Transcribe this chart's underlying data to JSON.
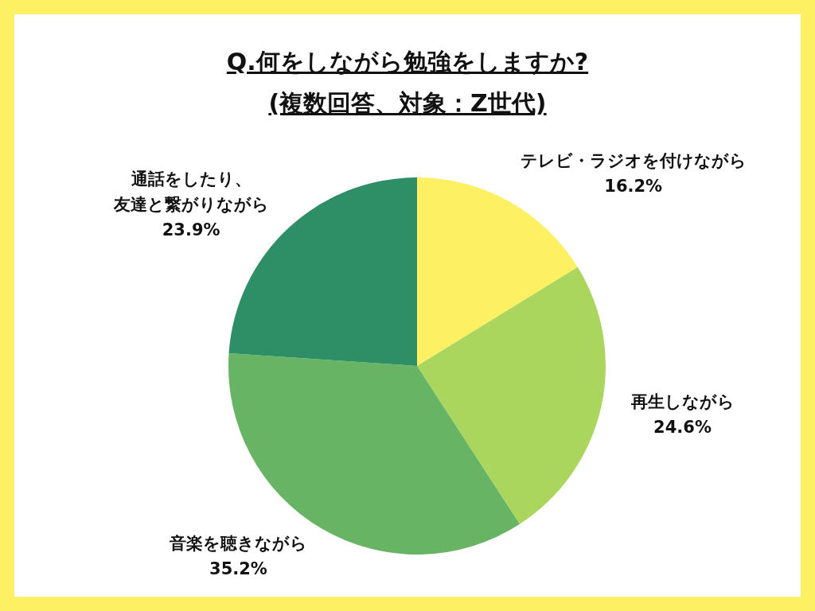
{
  "chart_data": {
    "type": "pie",
    "title": "Q.何をしながら勉強をしますか?",
    "subtitle": "(複数回答、対象：Z世代)",
    "categories": [
      "テレビ・ラジオを付けながら",
      "再生しながら",
      "音楽を聴きながら",
      "通話をしたり、友達と繋がりながら"
    ],
    "values": [
      16.2,
      24.6,
      35.2,
      23.9
    ],
    "value_labels": [
      "16.2%",
      "24.6%",
      "35.2%",
      "23.9%"
    ],
    "colors": [
      "#fef063",
      "#abd65e",
      "#67b564",
      "#2e8e66"
    ]
  }
}
